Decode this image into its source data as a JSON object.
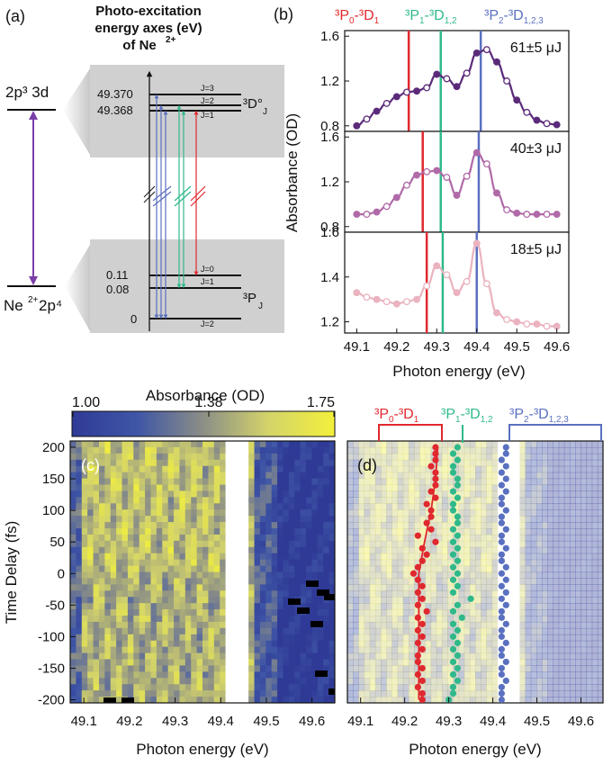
{
  "panel_a": {
    "label": "(a)",
    "title_lines": [
      "Photo-excitation",
      "energy axes (eV)",
      "of Ne"
    ],
    "title_sup": "2+",
    "upper_config": "2p³ 3d",
    "lower_config_prefix": "Ne",
    "lower_config_sup": "2+",
    "lower_config_suffix": " 2p⁴",
    "upper_values": [
      "49.370",
      "49.368"
    ],
    "lower_values": [
      "0.11",
      "0.08",
      "0"
    ],
    "upper_j": [
      "J=3",
      "J=2",
      "J=1"
    ],
    "lower_j": [
      "J=0",
      "J=1",
      "J=2"
    ],
    "upper_term": "³D°",
    "upper_term_sub": "J",
    "lower_term": "³P",
    "lower_term_sub": "J"
  },
  "panel_b": {
    "label": "(b)",
    "ylabel": "Absorbance (OD)",
    "xlabel": "Photon energy (eV)",
    "line_labels": {
      "red": {
        "a": "³P",
        "s1": "0",
        "b": "-³D",
        "s2": "1"
      },
      "green": {
        "a": "³P",
        "s1": "1",
        "b": "-³D",
        "s2": "1,2"
      },
      "blue": {
        "a": "³P",
        "s1": "2",
        "b": "-³D",
        "s2": "1,2,3"
      }
    },
    "xticks": [
      "49.1",
      "49.2",
      "49.3",
      "49.4",
      "49.5",
      "49.6"
    ],
    "subplots": [
      {
        "label": "61±5 μJ",
        "yticks": [
          "1.6",
          "1.2",
          "0.8"
        ]
      },
      {
        "label": "40±3 μJ",
        "yticks": [
          "1.6",
          "1.2",
          "0.8"
        ]
      },
      {
        "label": "18±5 μJ",
        "yticks": [
          "1.6",
          "1.4",
          "1.2"
        ]
      }
    ]
  },
  "colorbar": {
    "title": "Absorbance (OD)",
    "ticks": [
      "1.00",
      "1.38",
      "1.75"
    ]
  },
  "panel_c": {
    "label": "(c)",
    "ylabel": "Time Delay (fs)",
    "xlabel": "Photon energy (eV)",
    "yticks": [
      "200",
      "150",
      "100",
      "50",
      "0",
      "-50",
      "-100",
      "-150",
      "-200"
    ],
    "xticks": [
      "49.1",
      "49.2",
      "49.3",
      "49.4",
      "49.5",
      "49.6"
    ]
  },
  "panel_d": {
    "label": "(d)",
    "xlabel": "Photon energy (eV)",
    "xticks": [
      "49.1",
      "49.2",
      "49.3",
      "49.4",
      "49.5",
      "49.6"
    ],
    "line_labels": {
      "red": {
        "a": "³P",
        "s1": "0",
        "b": "-³D",
        "s2": "1"
      },
      "green": {
        "a": "³P",
        "s1": "1",
        "b": "-³D",
        "s2": "1,2"
      },
      "blue": {
        "a": "³P",
        "s1": "2",
        "b": "-³D",
        "s2": "1,2,3"
      }
    }
  },
  "colors": {
    "red": "#e0282e",
    "green": "#2fb98a",
    "blue": "#5a70c0",
    "purple": "#7b3fa8",
    "dark_purple": "#5b2a7a",
    "mid_purple": "#b06aa8",
    "pink": "#eab3bf",
    "cb_low": "#2f3a96",
    "cb_mid": "#8c8f86",
    "cb_high": "#f2f03a"
  },
  "chart_data": [
    {
      "type": "line",
      "title": "",
      "xlabel": "Photon energy (eV)",
      "ylabel": "Absorbance (OD)",
      "xlim": [
        49.07,
        49.63
      ],
      "vertical_lines": [
        {
          "name": "³P0-³D1",
          "x": 49.23,
          "color": "#e0282e"
        },
        {
          "name": "³P1-³D1,2",
          "x": 49.31,
          "color": "#2fb98a"
        },
        {
          "name": "³P2-³D1,2,3",
          "x": 49.41,
          "color": "#5a70c0"
        }
      ],
      "subplots": [
        {
          "name": "61±5 μJ",
          "ylim": [
            0.75,
            1.65
          ],
          "vlines": [
            49.23,
            49.31,
            49.41
          ],
          "x": [
            49.1,
            49.125,
            49.15,
            49.175,
            49.2,
            49.225,
            49.25,
            49.275,
            49.3,
            49.325,
            49.35,
            49.375,
            49.4,
            49.425,
            49.45,
            49.475,
            49.5,
            49.525,
            49.55,
            49.575,
            49.6
          ],
          "y": [
            0.8,
            0.86,
            0.93,
            1.0,
            1.06,
            1.1,
            1.11,
            1.14,
            1.26,
            1.22,
            1.15,
            1.27,
            1.45,
            1.48,
            1.37,
            1.2,
            1.03,
            0.92,
            0.85,
            0.82,
            0.81
          ]
        },
        {
          "name": "40±3 μJ",
          "ylim": [
            0.75,
            1.65
          ],
          "vlines": [
            49.265,
            49.31,
            49.405
          ],
          "x": [
            49.1,
            49.125,
            49.15,
            49.175,
            49.2,
            49.225,
            49.25,
            49.275,
            49.3,
            49.325,
            49.35,
            49.375,
            49.4,
            49.425,
            49.45,
            49.475,
            49.5,
            49.525,
            49.55,
            49.575,
            49.6
          ],
          "y": [
            0.91,
            0.91,
            0.93,
            0.98,
            1.06,
            1.17,
            1.26,
            1.29,
            1.3,
            1.24,
            1.08,
            1.25,
            1.46,
            1.36,
            1.1,
            0.95,
            0.92,
            0.91,
            0.91,
            0.91,
            0.91
          ]
        },
        {
          "name": "18±5 μJ",
          "ylim": [
            1.15,
            1.6
          ],
          "vlines": [
            49.275,
            49.315,
            49.4
          ],
          "x": [
            49.1,
            49.125,
            49.15,
            49.175,
            49.2,
            49.225,
            49.25,
            49.275,
            49.3,
            49.325,
            49.35,
            49.375,
            49.4,
            49.425,
            49.45,
            49.475,
            49.5,
            49.525,
            49.55,
            49.575,
            49.6
          ],
          "y": [
            1.33,
            1.31,
            1.3,
            1.29,
            1.28,
            1.29,
            1.3,
            1.36,
            1.45,
            1.41,
            1.33,
            1.38,
            1.55,
            1.37,
            1.24,
            1.21,
            1.2,
            1.19,
            1.19,
            1.18,
            1.18
          ]
        }
      ]
    },
    {
      "type": "heatmap",
      "name": "(c)",
      "xlabel": "Photon energy (eV)",
      "ylabel": "Time Delay (fs)",
      "xlim": [
        49.07,
        49.65
      ],
      "ylim": [
        -205,
        210
      ],
      "colorbar": {
        "label": "Absorbance (OD)",
        "range": [
          1.0,
          1.75
        ],
        "ticks": [
          1.0,
          1.38,
          1.75
        ]
      }
    },
    {
      "type": "scatter",
      "name": "(d)",
      "xlabel": "Photon energy (eV)",
      "xlim": [
        49.07,
        49.65
      ],
      "ylim": [
        -205,
        210
      ],
      "series": [
        {
          "name": "³P0-³D1",
          "points": [
            [
              49.27,
              200
            ],
            [
              49.27,
              190
            ],
            [
              49.27,
              180
            ],
            [
              49.26,
              170
            ],
            [
              49.27,
              160
            ],
            [
              49.27,
              150
            ],
            [
              49.27,
              140
            ],
            [
              49.26,
              130
            ],
            [
              49.27,
              120
            ],
            [
              49.25,
              110
            ],
            [
              49.26,
              100
            ],
            [
              49.26,
              90
            ],
            [
              49.25,
              80
            ],
            [
              49.26,
              70
            ],
            [
              49.23,
              60
            ],
            [
              49.27,
              50
            ],
            [
              49.24,
              40
            ],
            [
              49.25,
              30
            ],
            [
              49.24,
              20
            ],
            [
              49.23,
              10
            ],
            [
              49.22,
              0
            ],
            [
              49.23,
              -10
            ],
            [
              49.24,
              -20
            ],
            [
              49.23,
              -30
            ],
            [
              49.24,
              -40
            ],
            [
              49.23,
              -50
            ],
            [
              49.25,
              -60
            ],
            [
              49.23,
              -70
            ],
            [
              49.24,
              -80
            ],
            [
              49.23,
              -90
            ],
            [
              49.24,
              -100
            ],
            [
              49.23,
              -110
            ],
            [
              49.24,
              -120
            ],
            [
              49.23,
              -130
            ],
            [
              49.23,
              -140
            ],
            [
              49.24,
              -150
            ],
            [
              49.23,
              -160
            ],
            [
              49.24,
              -170
            ],
            [
              49.23,
              -180
            ],
            [
              49.24,
              -190
            ],
            [
              49.24,
              -200
            ]
          ],
          "fit": [
            [
              49.275,
              200
            ],
            [
              49.27,
              150
            ],
            [
              49.26,
              100
            ],
            [
              49.245,
              50
            ],
            [
              49.232,
              0
            ],
            [
              49.232,
              -50
            ],
            [
              49.232,
              -100
            ],
            [
              49.232,
              -150
            ],
            [
              49.232,
              -200
            ]
          ]
        },
        {
          "name": "³P1-³D1,2",
          "points": [
            [
              49.32,
              200
            ],
            [
              49.31,
              190
            ],
            [
              49.32,
              180
            ],
            [
              49.31,
              170
            ],
            [
              49.31,
              160
            ],
            [
              49.32,
              150
            ],
            [
              49.32,
              140
            ],
            [
              49.31,
              130
            ],
            [
              49.32,
              120
            ],
            [
              49.31,
              110
            ],
            [
              49.31,
              100
            ],
            [
              49.32,
              90
            ],
            [
              49.32,
              80
            ],
            [
              49.31,
              70
            ],
            [
              49.32,
              60
            ],
            [
              49.31,
              50
            ],
            [
              49.32,
              40
            ],
            [
              49.31,
              30
            ],
            [
              49.32,
              20
            ],
            [
              49.31,
              10
            ],
            [
              49.32,
              0
            ],
            [
              49.31,
              -10
            ],
            [
              49.32,
              -20
            ],
            [
              49.31,
              -30
            ],
            [
              49.35,
              -40
            ],
            [
              49.32,
              -50
            ],
            [
              49.31,
              -60
            ],
            [
              49.33,
              -70
            ],
            [
              49.31,
              -80
            ],
            [
              49.32,
              -90
            ],
            [
              49.31,
              -100
            ],
            [
              49.32,
              -110
            ],
            [
              49.31,
              -120
            ],
            [
              49.32,
              -130
            ],
            [
              49.31,
              -140
            ],
            [
              49.32,
              -150
            ],
            [
              49.31,
              -160
            ],
            [
              49.32,
              -170
            ],
            [
              49.31,
              -180
            ],
            [
              49.31,
              -190
            ],
            [
              49.3,
              -200
            ]
          ]
        },
        {
          "name": "³P2-³D1,2,3",
          "points": [
            [
              49.43,
              200
            ],
            [
              49.43,
              190
            ],
            [
              49.42,
              180
            ],
            [
              49.43,
              170
            ],
            [
              49.42,
              160
            ],
            [
              49.43,
              150
            ],
            [
              49.42,
              140
            ],
            [
              49.43,
              130
            ],
            [
              49.42,
              120
            ],
            [
              49.42,
              110
            ],
            [
              49.43,
              100
            ],
            [
              49.42,
              90
            ],
            [
              49.42,
              80
            ],
            [
              49.43,
              70
            ],
            [
              49.42,
              60
            ],
            [
              49.42,
              50
            ],
            [
              49.43,
              40
            ],
            [
              49.42,
              30
            ],
            [
              49.42,
              20
            ],
            [
              49.43,
              10
            ],
            [
              49.42,
              0
            ],
            [
              49.43,
              -10
            ],
            [
              49.42,
              -20
            ],
            [
              49.43,
              -30
            ],
            [
              49.42,
              -40
            ],
            [
              49.43,
              -50
            ],
            [
              49.42,
              -60
            ],
            [
              49.42,
              -70
            ],
            [
              49.43,
              -80
            ],
            [
              49.42,
              -90
            ],
            [
              49.42,
              -100
            ],
            [
              49.43,
              -110
            ],
            [
              49.42,
              -120
            ],
            [
              49.42,
              -130
            ],
            [
              49.43,
              -140
            ],
            [
              49.42,
              -150
            ],
            [
              49.42,
              -160
            ],
            [
              49.43,
              -170
            ],
            [
              49.42,
              -180
            ],
            [
              49.42,
              -190
            ],
            [
              49.42,
              -200
            ]
          ]
        }
      ]
    }
  ]
}
